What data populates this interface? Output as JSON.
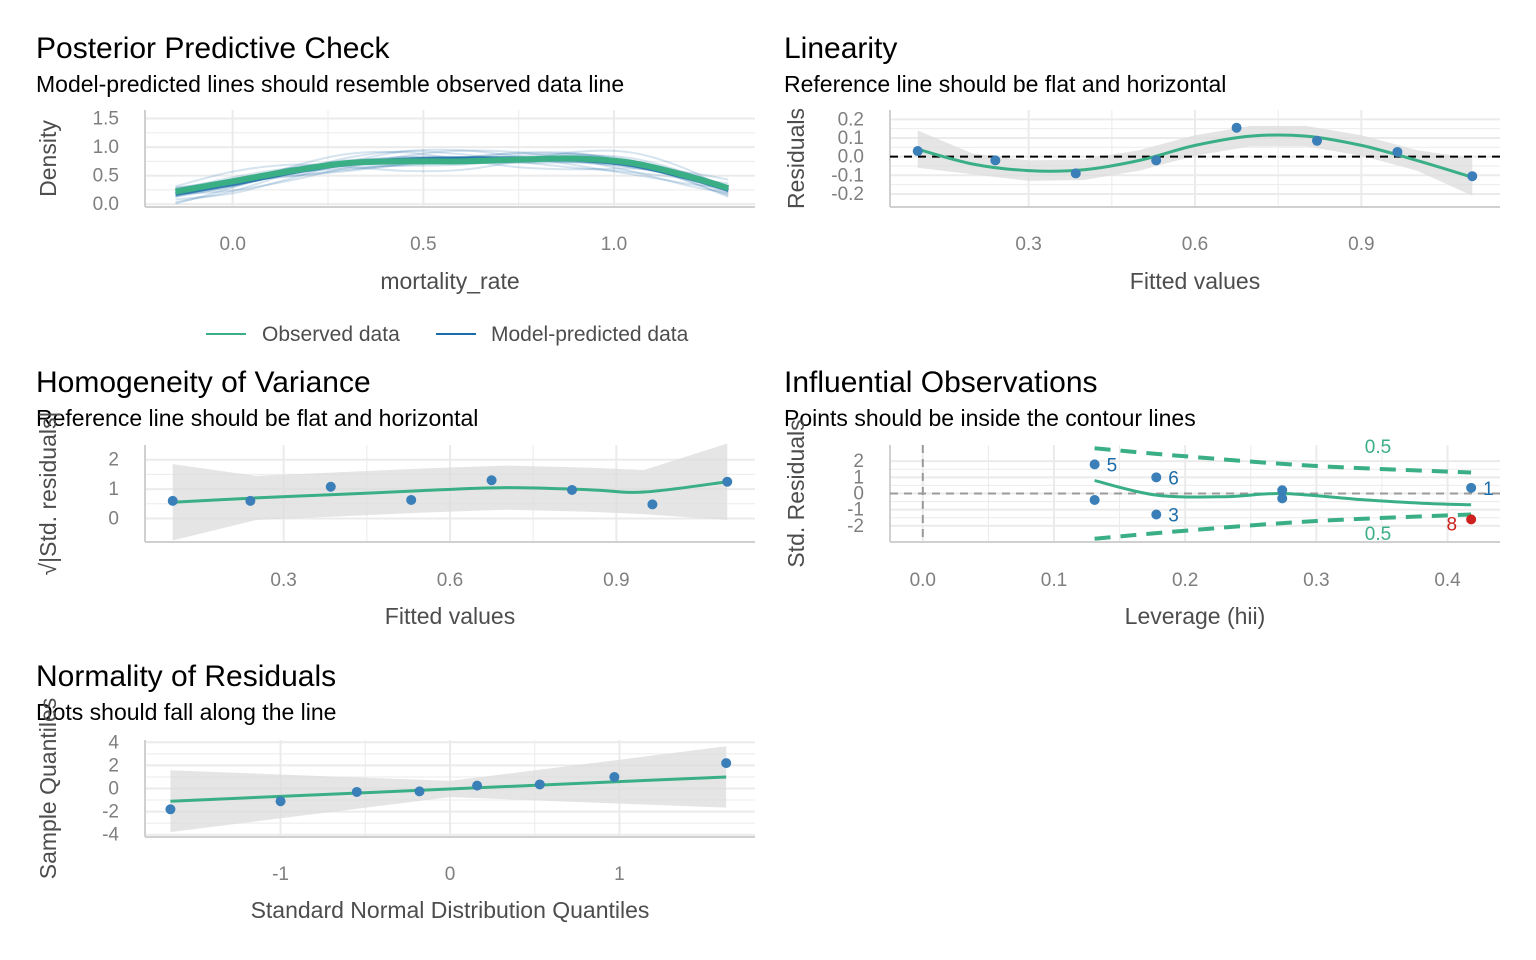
{
  "colors": {
    "green": "#3aaf85",
    "blue": "#1b6ca8",
    "point": "#3a7fb8",
    "red": "#cd201f",
    "band": "#dcdcdc",
    "grid": "#ebebeb"
  },
  "chart_data": [
    {
      "id": "ppc",
      "type": "line",
      "title": "Posterior Predictive Check",
      "subtitle": "Model-predicted lines should resemble observed data line",
      "xlabel": "mortality_rate",
      "ylabel": "Density",
      "xlim": [
        -0.23,
        1.37
      ],
      "ylim": [
        -0.05,
        1.65
      ],
      "xticks": [
        0.0,
        0.5,
        1.0
      ],
      "xticklabels": [
        "0.0",
        "0.5",
        "1.0"
      ],
      "yticks": [
        0.0,
        0.5,
        1.0,
        1.5
      ],
      "yticklabels": [
        "0.0",
        "0.5",
        "1.0",
        "1.5"
      ],
      "legend": {
        "position": "bottom",
        "items": [
          "Observed data",
          "Model-predicted data"
        ]
      },
      "series": [
        {
          "name": "Observed data",
          "x": [
            -0.15,
            0.0,
            0.15,
            0.3,
            0.45,
            0.6,
            0.75,
            0.9,
            1.05,
            1.2,
            1.3
          ],
          "y": [
            0.22,
            0.4,
            0.58,
            0.72,
            0.75,
            0.75,
            0.78,
            0.8,
            0.72,
            0.48,
            0.28
          ]
        },
        {
          "name": "Model-predicted data",
          "x": [
            -0.15,
            0.0,
            0.15,
            0.3,
            0.45,
            0.6,
            0.75,
            0.9,
            1.05,
            1.2,
            1.3
          ],
          "y": [
            0.18,
            0.35,
            0.55,
            0.7,
            0.78,
            0.8,
            0.8,
            0.78,
            0.68,
            0.45,
            0.25
          ]
        }
      ]
    },
    {
      "id": "lin",
      "type": "scatter",
      "title": "Linearity",
      "subtitle": "Reference line should be flat and horizontal",
      "xlabel": "Fitted values",
      "ylabel": "Residuals",
      "xlim": [
        0.05,
        1.15
      ],
      "ylim": [
        -0.27,
        0.25
      ],
      "xticks": [
        0.3,
        0.6,
        0.9
      ],
      "xticklabels": [
        "0.3",
        "0.6",
        "0.9"
      ],
      "yticks": [
        -0.2,
        -0.1,
        0.0,
        0.1,
        0.2
      ],
      "yticklabels": [
        "-0.2",
        "-0.1",
        "0.0",
        "0.1",
        "0.2"
      ],
      "points": [
        {
          "x": 0.1,
          "y": 0.03
        },
        {
          "x": 0.24,
          "y": -0.02
        },
        {
          "x": 0.385,
          "y": -0.09
        },
        {
          "x": 0.53,
          "y": -0.02
        },
        {
          "x": 0.675,
          "y": 0.155
        },
        {
          "x": 0.82,
          "y": 0.085
        },
        {
          "x": 0.965,
          "y": 0.025
        },
        {
          "x": 1.1,
          "y": -0.105
        }
      ],
      "smooth": {
        "x": [
          0.1,
          0.2,
          0.3,
          0.4,
          0.5,
          0.6,
          0.7,
          0.8,
          0.9,
          1.0,
          1.1
        ],
        "y": [
          0.04,
          -0.04,
          -0.075,
          -0.07,
          -0.02,
          0.06,
          0.11,
          0.11,
          0.06,
          -0.02,
          -0.11
        ]
      }
    },
    {
      "id": "hov",
      "type": "scatter",
      "title": "Homogeneity of Variance",
      "subtitle": "Reference line should be flat and horizontal",
      "xlabel": "Fitted values",
      "ylabel": "√|Std. residuals|",
      "xlim": [
        0.05,
        1.15
      ],
      "ylim": [
        -0.8,
        2.5
      ],
      "xticks": [
        0.3,
        0.6,
        0.9
      ],
      "xticklabels": [
        "0.3",
        "0.6",
        "0.9"
      ],
      "yticks": [
        0,
        1,
        2
      ],
      "yticklabels": [
        "0",
        "1",
        "2"
      ],
      "points": [
        {
          "x": 0.1,
          "y": 0.6
        },
        {
          "x": 0.24,
          "y": 0.6
        },
        {
          "x": 0.385,
          "y": 1.08
        },
        {
          "x": 0.53,
          "y": 0.63
        },
        {
          "x": 0.675,
          "y": 1.3
        },
        {
          "x": 0.82,
          "y": 0.97
        },
        {
          "x": 0.965,
          "y": 0.48
        },
        {
          "x": 1.1,
          "y": 1.25
        }
      ],
      "smooth": {
        "x": [
          0.1,
          0.25,
          0.4,
          0.55,
          0.7,
          0.85,
          0.95,
          1.1
        ],
        "y": [
          0.55,
          0.7,
          0.82,
          0.95,
          1.05,
          0.98,
          0.9,
          1.25
        ]
      }
    },
    {
      "id": "inf",
      "type": "scatter",
      "title": "Influential Observations",
      "subtitle": "Points should be inside the contour lines",
      "xlabel": "Leverage (hii)",
      "ylabel": "Std. Residuals",
      "xlim": [
        -0.025,
        0.44
      ],
      "ylim": [
        -3.0,
        3.0
      ],
      "xticks": [
        0.0,
        0.1,
        0.2,
        0.3,
        0.4
      ],
      "xticklabels": [
        "0.0",
        "0.1",
        "0.2",
        "0.3",
        "0.4"
      ],
      "yticks": [
        -2,
        -1,
        0,
        1,
        2
      ],
      "yticklabels": [
        "-2",
        "-1",
        "0",
        "1",
        "2"
      ],
      "points": [
        {
          "x": 0.131,
          "y": 1.8,
          "label": "5"
        },
        {
          "x": 0.178,
          "y": 1.0,
          "label": "6"
        },
        {
          "x": 0.178,
          "y": -1.3,
          "label": "3"
        },
        {
          "x": 0.131,
          "y": -0.4,
          "label": ""
        },
        {
          "x": 0.274,
          "y": 0.2,
          "label": ""
        },
        {
          "x": 0.274,
          "y": -0.3,
          "label": ""
        },
        {
          "x": 0.418,
          "y": 0.35,
          "label": "1"
        },
        {
          "x": 0.418,
          "y": -1.6,
          "label": "8",
          "influential": true
        }
      ],
      "smooth": {
        "x": [
          0.131,
          0.178,
          0.23,
          0.274,
          0.33,
          0.38,
          0.418
        ],
        "y": [
          0.8,
          -0.1,
          -0.2,
          0.0,
          -0.35,
          -0.6,
          -0.7
        ]
      },
      "contours": [
        {
          "label": "0.5",
          "x": [
            0.131,
            0.2,
            0.3,
            0.418
          ],
          "y": [
            2.8,
            2.3,
            1.7,
            1.3
          ]
        },
        {
          "label": "0.5",
          "x": [
            0.131,
            0.2,
            0.3,
            0.418
          ],
          "y": [
            -2.8,
            -2.3,
            -1.7,
            -1.3
          ]
        }
      ]
    },
    {
      "id": "qq",
      "type": "scatter",
      "title": "Normality of Residuals",
      "subtitle": "Dots should fall along the line",
      "xlabel": "Standard Normal Distribution Quantiles",
      "ylabel": "Sample Quantiles",
      "xlim": [
        -1.8,
        1.8
      ],
      "ylim": [
        -4.2,
        4.2
      ],
      "xticks": [
        -1,
        0,
        1
      ],
      "xticklabels": [
        "-1",
        "0",
        "1"
      ],
      "yticks": [
        -4,
        -2,
        0,
        2,
        4
      ],
      "yticklabels": [
        "-4",
        "-2",
        "0",
        "2",
        "4"
      ],
      "points": [
        {
          "x": -1.65,
          "y": -1.8
        },
        {
          "x": -1.0,
          "y": -1.1
        },
        {
          "x": -0.55,
          "y": -0.3
        },
        {
          "x": -0.18,
          "y": -0.25
        },
        {
          "x": 0.16,
          "y": 0.25
        },
        {
          "x": 0.53,
          "y": 0.35
        },
        {
          "x": 0.97,
          "y": 1.0
        },
        {
          "x": 1.63,
          "y": 2.2
        }
      ],
      "smooth": {
        "x": [
          -1.65,
          1.63
        ],
        "y": [
          -1.1,
          1.0
        ]
      }
    }
  ]
}
